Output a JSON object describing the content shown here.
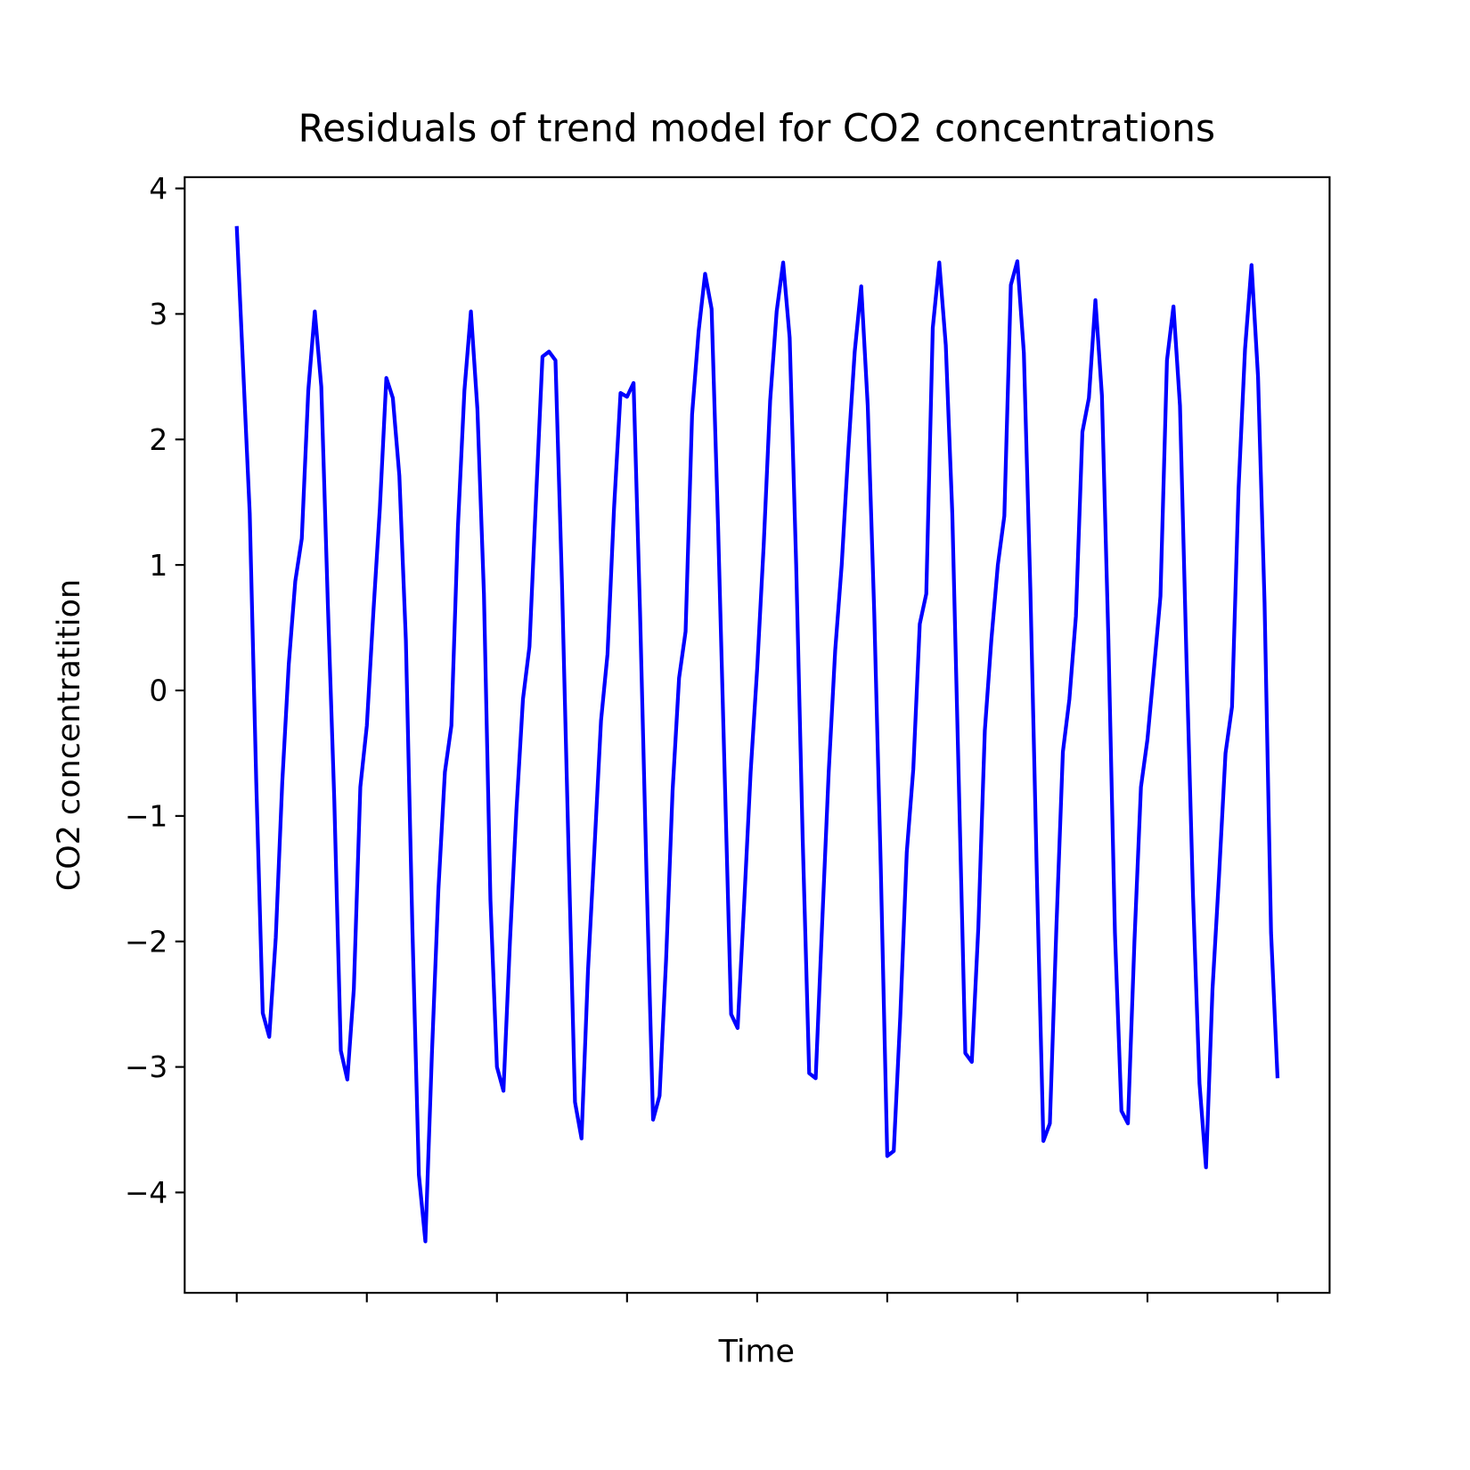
{
  "chart_data": {
    "type": "line",
    "title": "Residuals of trend model for CO2 concentrations",
    "xlabel": "Time",
    "ylabel": "CO2 concentratition",
    "color": "#0000ff",
    "values": [
      3.7,
      2.55,
      1.41,
      -0.73,
      -2.57,
      -2.76,
      -1.97,
      -0.73,
      0.21,
      0.87,
      1.21,
      2.39,
      3.02,
      2.42,
      0.7,
      -0.88,
      -2.87,
      -3.1,
      -2.38,
      -0.77,
      -0.28,
      0.62,
      1.45,
      2.49,
      2.33,
      1.71,
      0.4,
      -1.89,
      -3.86,
      -4.39,
      -2.9,
      -1.59,
      -0.65,
      -0.28,
      1.3,
      2.39,
      3.02,
      2.24,
      0.77,
      -1.67,
      -3.0,
      -3.19,
      -2.0,
      -0.95,
      -0.07,
      0.35,
      1.52,
      2.66,
      2.7,
      2.63,
      0.85,
      -1.25,
      -3.28,
      -3.57,
      -2.23,
      -1.25,
      -0.24,
      0.29,
      1.45,
      2.37,
      2.34,
      2.45,
      0.62,
      -1.48,
      -3.42,
      -3.23,
      -2.15,
      -0.8,
      0.1,
      0.47,
      2.2,
      2.86,
      3.32,
      3.04,
      1.3,
      -0.65,
      -2.58,
      -2.69,
      -1.7,
      -0.65,
      0.17,
      1.15,
      2.31,
      3.02,
      3.41,
      2.81,
      1.0,
      -1.18,
      -3.05,
      -3.09,
      -1.85,
      -0.65,
      0.32,
      1.0,
      1.9,
      2.7,
      3.22,
      2.27,
      0.62,
      -1.4,
      -3.71,
      -3.67,
      -2.6,
      -1.29,
      -0.63,
      0.53,
      0.77,
      2.89,
      3.41,
      2.75,
      1.41,
      -0.73,
      -2.89,
      -2.96,
      -1.89,
      -0.32,
      0.4,
      1.0,
      1.39,
      3.23,
      3.42,
      2.69,
      0.81,
      -1.48,
      -3.59,
      -3.45,
      -1.89,
      -0.49,
      -0.07,
      0.59,
      2.06,
      2.33,
      3.11,
      2.35,
      0.4,
      -1.93,
      -3.35,
      -3.45,
      -2.0,
      -0.77,
      -0.39,
      0.17,
      0.75,
      2.63,
      3.06,
      2.27,
      0.25,
      -1.63,
      -3.13,
      -3.8,
      -2.38,
      -1.48,
      -0.5,
      -0.13,
      1.6,
      2.72,
      3.39,
      2.5,
      0.7,
      -1.93,
      -3.09
    ],
    "xlim": [
      -8,
      168
    ],
    "xticks": [
      0,
      20,
      40,
      60,
      80,
      100,
      120,
      140,
      160
    ],
    "ylim": [
      -4.8,
      4.09
    ],
    "yticks": [
      {
        "value": -4,
        "label": "−4"
      },
      {
        "value": -3,
        "label": "−3"
      },
      {
        "value": -2,
        "label": "−2"
      },
      {
        "value": -1,
        "label": "−1"
      },
      0,
      1,
      2,
      3,
      4
    ]
  }
}
